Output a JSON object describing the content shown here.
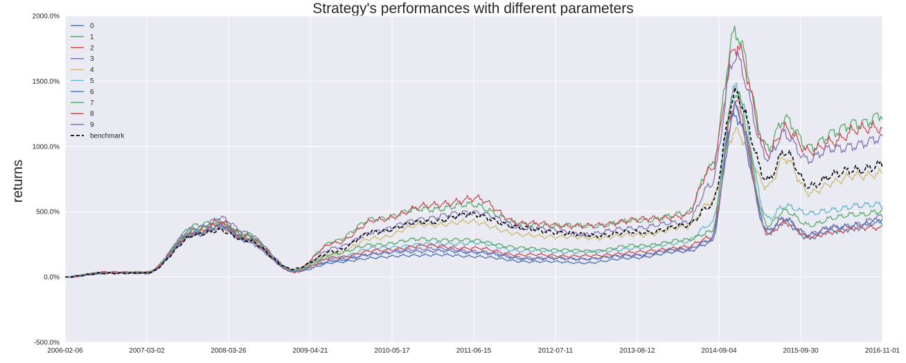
{
  "chart_data": {
    "type": "line",
    "title": "Strategy's performances with different parameters",
    "xlabel": "",
    "ylabel": "returns",
    "ylim": [
      -500,
      2000
    ],
    "y_ticks": [
      -500,
      0,
      500,
      1000,
      1500,
      2000
    ],
    "y_tick_labels": [
      "-500.0%",
      "0.0%",
      "500.0%",
      "1000.0%",
      "1500.0%",
      "2000.0%"
    ],
    "x_tick_labels": [
      "2006-02-06",
      "2007-03-02",
      "2008-03-26",
      "2009-04-21",
      "2010-05-17",
      "2011-06-15",
      "2012-07-11",
      "2013-08-12",
      "2014-09-04",
      "2015-09-30",
      "2016-11-01"
    ],
    "grid": true,
    "legend_position": "upper-left",
    "x_positions": [
      0,
      0.05,
      0.1,
      0.16,
      0.19,
      0.22,
      0.28,
      0.33,
      0.38,
      0.44,
      0.5,
      0.56,
      0.64,
      0.7,
      0.76,
      0.79,
      0.82,
      0.86,
      0.88,
      0.91,
      0.94,
      0.97,
      1.0
    ],
    "series": [
      {
        "name": "0",
        "color": "#4c72b0",
        "values": [
          0,
          30,
          30,
          350,
          400,
          300,
          50,
          120,
          180,
          200,
          190,
          140,
          140,
          170,
          220,
          280,
          1300,
          350,
          450,
          320,
          380,
          400,
          410
        ]
      },
      {
        "name": "1",
        "color": "#55a868",
        "values": [
          0,
          35,
          35,
          390,
          440,
          330,
          40,
          280,
          450,
          520,
          550,
          400,
          390,
          430,
          480,
          850,
          1850,
          1000,
          1200,
          1000,
          1100,
          1180,
          1250
        ]
      },
      {
        "name": "2",
        "color": "#c44e52",
        "values": [
          0,
          35,
          35,
          360,
          420,
          320,
          50,
          260,
          430,
          540,
          600,
          410,
          390,
          440,
          470,
          820,
          1780,
          950,
          1150,
          950,
          1050,
          1120,
          1150
        ]
      },
      {
        "name": "3",
        "color": "#8172b2",
        "values": [
          0,
          35,
          35,
          380,
          450,
          340,
          50,
          220,
          350,
          450,
          500,
          380,
          330,
          380,
          420,
          700,
          1700,
          900,
          1100,
          900,
          980,
          1020,
          1050
        ]
      },
      {
        "name": "4",
        "color": "#ccb974",
        "values": [
          0,
          30,
          30,
          330,
          380,
          280,
          50,
          180,
          300,
          400,
          420,
          320,
          300,
          320,
          380,
          580,
          1100,
          700,
          900,
          650,
          720,
          780,
          800
        ]
      },
      {
        "name": "5",
        "color": "#64b5cd",
        "values": [
          0,
          30,
          30,
          340,
          390,
          290,
          50,
          150,
          220,
          250,
          260,
          200,
          190,
          220,
          270,
          400,
          1450,
          450,
          550,
          480,
          520,
          540,
          560
        ]
      },
      {
        "name": "6",
        "color": "#4c72b0",
        "values": [
          0,
          30,
          30,
          330,
          380,
          280,
          40,
          110,
          150,
          170,
          160,
          120,
          110,
          150,
          200,
          260,
          1250,
          330,
          420,
          300,
          350,
          380,
          440
        ]
      },
      {
        "name": "7",
        "color": "#55a868",
        "values": [
          0,
          35,
          35,
          360,
          410,
          310,
          50,
          180,
          250,
          290,
          280,
          220,
          200,
          240,
          280,
          350,
          1400,
          400,
          500,
          400,
          450,
          480,
          510
        ]
      },
      {
        "name": "8",
        "color": "#c44e52",
        "values": [
          0,
          35,
          35,
          340,
          400,
          300,
          40,
          150,
          200,
          240,
          220,
          170,
          160,
          190,
          230,
          300,
          1350,
          330,
          420,
          300,
          350,
          370,
          380
        ]
      },
      {
        "name": "9",
        "color": "#8172b2",
        "values": [
          0,
          30,
          30,
          330,
          380,
          280,
          40,
          130,
          180,
          220,
          200,
          150,
          140,
          170,
          210,
          280,
          1300,
          350,
          450,
          330,
          380,
          410,
          460
        ]
      }
    ],
    "benchmark": {
      "name": "benchmark",
      "color": "#000000",
      "dash": true,
      "values": [
        0,
        30,
        30,
        320,
        360,
        280,
        60,
        200,
        350,
        420,
        480,
        370,
        320,
        340,
        390,
        550,
        1380,
        750,
        950,
        700,
        780,
        820,
        870
      ]
    }
  }
}
